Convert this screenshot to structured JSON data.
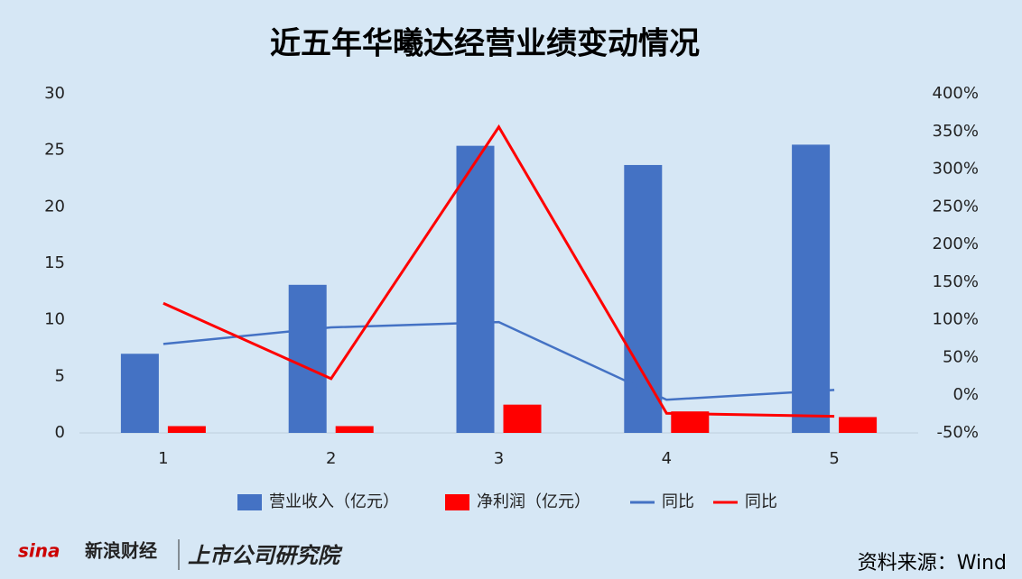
{
  "chart_data": {
    "type": "combo",
    "title": "近五年华曦达经营业绩变动情况",
    "categories": [
      "1",
      "2",
      "3",
      "4",
      "5"
    ],
    "series": [
      {
        "name": "营业收入（亿元）",
        "type": "bar",
        "color": "#4472c4",
        "values": [
          7.0,
          13.1,
          25.4,
          23.7,
          25.5
        ]
      },
      {
        "name": "净利润（亿元）",
        "type": "bar",
        "color": "#ff0000",
        "values": [
          0.6,
          0.6,
          2.5,
          1.9,
          1.4
        ]
      },
      {
        "name": "同比",
        "type": "line",
        "axis": "y2",
        "color": "#4472c4",
        "values": [
          68,
          90,
          97,
          -6,
          7
        ]
      },
      {
        "name": "同比",
        "type": "line",
        "axis": "y2",
        "color": "#ff0000",
        "values": [
          122,
          22,
          356,
          -24,
          -28
        ]
      }
    ],
    "ylim": [
      0,
      30
    ],
    "yticks": [
      0,
      5,
      10,
      15,
      20,
      25,
      30
    ],
    "y2lim": [
      -50,
      400
    ],
    "y2ticks": [
      {
        "value": -50,
        "label": "-50%"
      },
      {
        "value": 0,
        "label": "0%"
      },
      {
        "value": 50,
        "label": "50%"
      },
      {
        "value": 100,
        "label": "100%"
      },
      {
        "value": 150,
        "label": "150%"
      },
      {
        "value": 200,
        "label": "200%"
      },
      {
        "value": 250,
        "label": "250%"
      },
      {
        "value": 300,
        "label": "300%"
      },
      {
        "value": 350,
        "label": "350%"
      },
      {
        "value": 400,
        "label": "400%"
      }
    ],
    "legend": "bottom",
    "source": "资料来源：Wind",
    "logos": [
      "新浪财经",
      "上市公司研究院"
    ]
  }
}
